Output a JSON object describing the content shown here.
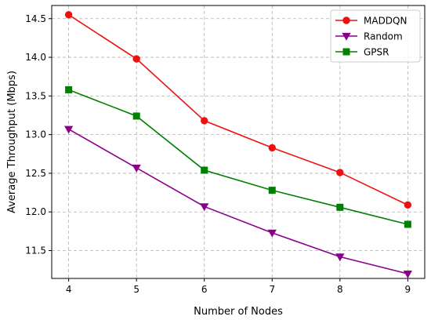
{
  "chart_data": {
    "type": "line",
    "title": "",
    "xlabel": "Number of Nodes",
    "ylabel": "Average Throughput (Mbps)",
    "x": [
      4,
      5,
      6,
      7,
      8,
      9
    ],
    "xlim": [
      3.75,
      9.25
    ],
    "ylim": [
      11.14,
      14.67
    ],
    "xticks": [
      "4",
      "5",
      "6",
      "7",
      "8",
      "9"
    ],
    "yticks": [
      11.5,
      12.0,
      12.5,
      13.0,
      13.5,
      14.0,
      14.5
    ],
    "ytick_labels": [
      "11.5",
      "12.0",
      "12.5",
      "13.0",
      "13.5",
      "14.0",
      "14.5"
    ],
    "grid": true,
    "legend_position": "top-right",
    "series": [
      {
        "name": "MADDQN",
        "values": [
          14.55,
          13.98,
          13.18,
          12.83,
          12.51,
          12.09
        ],
        "color": "#ee1111",
        "marker": "circle"
      },
      {
        "name": "Random",
        "values": [
          13.07,
          12.57,
          12.07,
          11.73,
          11.42,
          11.2
        ],
        "color": "#8b008b",
        "marker": "triangle-down"
      },
      {
        "name": "GPSR",
        "values": [
          13.58,
          13.24,
          12.54,
          12.28,
          12.06,
          11.84
        ],
        "color": "#008000",
        "marker": "square"
      }
    ]
  }
}
